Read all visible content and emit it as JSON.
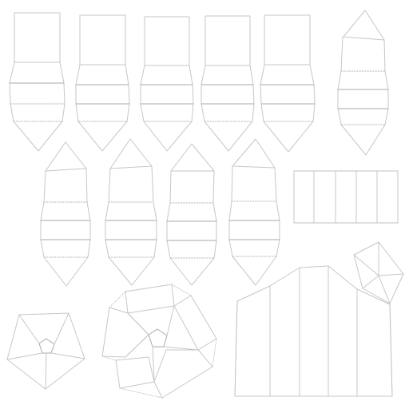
{
  "canvas": {
    "background": "#ffffff",
    "line_color": "#c7c7c7",
    "dark_line_color": "#a8a8a8",
    "dotted_line_color": "#b9b9b9"
  },
  "diagram": {
    "kind": "uv-layout-wireframe"
  }
}
